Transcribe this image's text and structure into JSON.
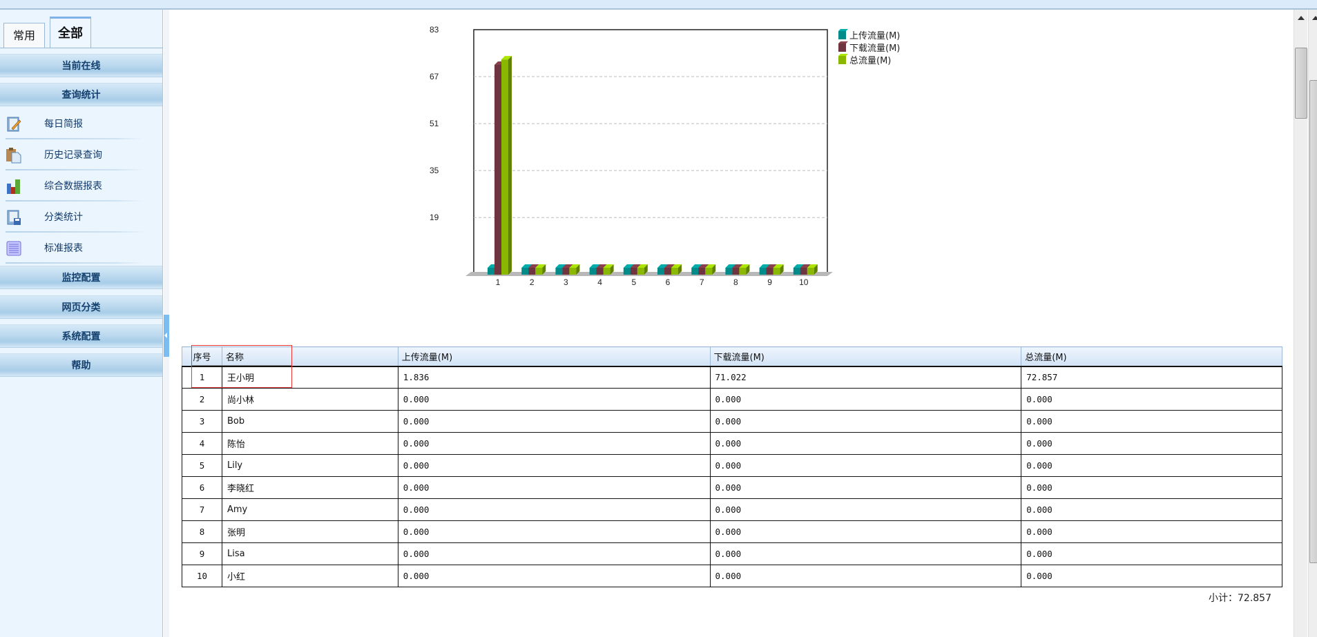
{
  "sidebar": {
    "tabs": [
      {
        "label": "常用"
      },
      {
        "label": "全部"
      }
    ],
    "sections": [
      {
        "label": "当前在线"
      },
      {
        "label": "查询统计"
      },
      {
        "label": "监控配置"
      },
      {
        "label": "网页分类"
      },
      {
        "label": "系统配置"
      },
      {
        "label": "帮助"
      }
    ],
    "items": [
      {
        "label": "每日简报",
        "icon": "notebook-pencil-icon"
      },
      {
        "label": "历史记录查询",
        "icon": "clipboard-icon"
      },
      {
        "label": "综合数据报表",
        "icon": "bar-chart-icon"
      },
      {
        "label": "分类统计",
        "icon": "notebook-disk-icon"
      },
      {
        "label": "标准报表",
        "icon": "list-report-icon"
      }
    ]
  },
  "chart_data": {
    "type": "bar",
    "categories": [
      "1",
      "2",
      "3",
      "4",
      "5",
      "6",
      "7",
      "8",
      "9",
      "10"
    ],
    "series": [
      {
        "name": "上传流量(M)",
        "color": "#008b8b",
        "values": [
          1.836,
          0,
          0,
          0,
          0,
          0,
          0,
          0,
          0,
          0
        ]
      },
      {
        "name": "下载流量(M)",
        "color": "#6e343f",
        "values": [
          71.022,
          0,
          0,
          0,
          0,
          0,
          0,
          0,
          0,
          0
        ]
      },
      {
        "name": "总流量(M)",
        "color": "#8ab800",
        "values": [
          72.857,
          0,
          0,
          0,
          0,
          0,
          0,
          0,
          0,
          0
        ]
      }
    ],
    "yticks": [
      19,
      35,
      51,
      67,
      83
    ],
    "ylim": [
      0,
      83
    ],
    "grid": true,
    "legend": "right",
    "style": "3d"
  },
  "table": {
    "headers": [
      "序号",
      "名称",
      "上传流量(M)",
      "下载流量(M)",
      "总流量(M)"
    ],
    "rows": [
      [
        "1",
        "王小明",
        "1.836",
        "71.022",
        "72.857"
      ],
      [
        "2",
        "尚小林",
        "0.000",
        "0.000",
        "0.000"
      ],
      [
        "3",
        "Bob",
        "0.000",
        "0.000",
        "0.000"
      ],
      [
        "4",
        "陈怡",
        "0.000",
        "0.000",
        "0.000"
      ],
      [
        "5",
        "Lily",
        "0.000",
        "0.000",
        "0.000"
      ],
      [
        "6",
        "李晓红",
        "0.000",
        "0.000",
        "0.000"
      ],
      [
        "7",
        "Amy",
        "0.000",
        "0.000",
        "0.000"
      ],
      [
        "8",
        "张明",
        "0.000",
        "0.000",
        "0.000"
      ],
      [
        "9",
        "Lisa",
        "0.000",
        "0.000",
        "0.000"
      ],
      [
        "10",
        "小红",
        "0.000",
        "0.000",
        "0.000"
      ]
    ],
    "subtotal": "小计：72.857"
  }
}
